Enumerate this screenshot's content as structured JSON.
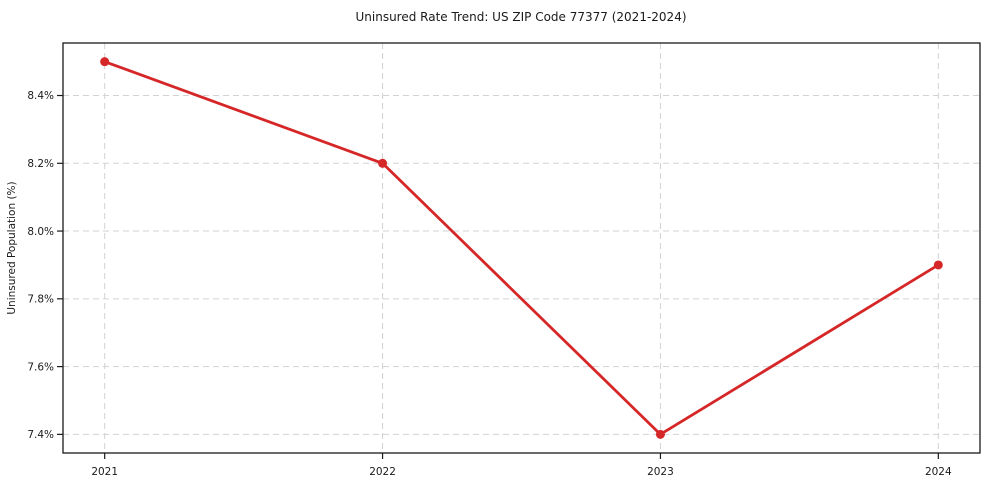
{
  "chart": {
    "title": "Uninsured Rate Trend: US ZIP Code 77377 (2021-2024)",
    "y_axis_title": "Uninsured Population (%)"
  },
  "chart_data": {
    "type": "line",
    "title": "Uninsured Rate Trend: US ZIP Code 77377 (2021-2024)",
    "xlabel": "",
    "ylabel": "Uninsured Population (%)",
    "x": [
      2021,
      2022,
      2023,
      2024
    ],
    "x_tick_labels": [
      "2021",
      "2022",
      "2023",
      "2024"
    ],
    "values": [
      8.5,
      8.2,
      7.4,
      7.9
    ],
    "yticks": [
      7.4,
      7.6,
      7.8,
      8.0,
      8.2,
      8.4
    ],
    "y_tick_labels": [
      "7.4%",
      "7.6%",
      "7.8%",
      "8.0%",
      "8.2%",
      "8.4%"
    ],
    "xlim": [
      2020.85,
      2024.15
    ],
    "ylim": [
      7.345,
      8.555
    ],
    "grid": true,
    "grid_style": "dashed",
    "legend": false,
    "colors": {
      "line": "#d62728",
      "marker": "#d62728",
      "grid": "#d2d2d2",
      "spine": "#1a1a1a",
      "text": "#1a1a1a",
      "background": "#ffffff"
    }
  }
}
